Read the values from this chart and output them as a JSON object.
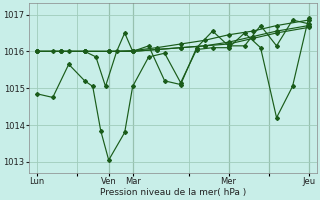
{
  "bg_color": "#c8eee8",
  "grid_color": "#a0ccbb",
  "line_color": "#1a5c1a",
  "ylabel": "Pression niveau de la mer( hPa )",
  "ylim": [
    1012.7,
    1017.3
  ],
  "yticks": [
    1013,
    1014,
    1015,
    1016,
    1017
  ],
  "xlim": [
    0,
    18
  ],
  "xtick_labels": [
    "Lun",
    "",
    "Ven",
    "Mar",
    "",
    "Mer",
    "",
    "Jeu"
  ],
  "xtick_positions": [
    0.5,
    3,
    5.0,
    6.5,
    10,
    12.5,
    15,
    17.5
  ],
  "lines": [
    {
      "x": [
        0.5,
        2.0,
        3.5,
        5.0,
        6.5,
        8.0,
        9.5,
        11.0,
        12.5,
        14.0,
        15.5,
        17.5
      ],
      "y": [
        1016.0,
        1016.0,
        1016.0,
        1016.0,
        1016.0,
        1016.05,
        1016.1,
        1016.15,
        1016.2,
        1016.35,
        1016.5,
        1016.65
      ],
      "marker": "D",
      "ms": 2.0
    },
    {
      "x": [
        0.5,
        2.0,
        3.5,
        5.0,
        6.5,
        8.0,
        9.5,
        11.0,
        12.5,
        14.0,
        15.5,
        17.5
      ],
      "y": [
        1016.0,
        1016.0,
        1016.0,
        1016.0,
        1016.0,
        1016.05,
        1016.1,
        1016.15,
        1016.25,
        1016.4,
        1016.55,
        1016.7
      ],
      "marker": "D",
      "ms": 2.0
    },
    {
      "x": [
        0.5,
        2.0,
        3.5,
        5.0,
        6.5,
        8.0,
        9.5,
        11.0,
        12.5,
        14.0,
        15.5,
        17.5
      ],
      "y": [
        1016.0,
        1016.0,
        1016.0,
        1016.0,
        1016.02,
        1016.1,
        1016.2,
        1016.3,
        1016.45,
        1016.55,
        1016.7,
        1016.85
      ],
      "marker": "D",
      "ms": 2.0
    },
    {
      "x": [
        0.5,
        1.5,
        2.5,
        3.5,
        4.2,
        4.8,
        5.5,
        6.0,
        6.5,
        7.5,
        8.5,
        9.5,
        10.5,
        11.5,
        12.5,
        13.5,
        14.5,
        15.5,
        16.5,
        17.5
      ],
      "y": [
        1016.0,
        1016.0,
        1016.0,
        1016.0,
        1015.85,
        1015.05,
        1016.0,
        1016.5,
        1016.0,
        1016.15,
        1015.2,
        1015.1,
        1016.1,
        1016.55,
        1016.15,
        1016.15,
        1016.7,
        1016.15,
        1016.85,
        1016.75
      ],
      "marker": "D",
      "ms": 2.0
    },
    {
      "x": [
        0.5,
        1.5,
        2.5,
        3.5,
        4.0,
        4.5,
        5.0,
        6.0,
        6.5,
        7.5,
        8.5,
        9.5,
        10.5,
        11.5,
        12.5,
        13.5,
        14.5,
        15.5,
        16.5,
        17.5
      ],
      "y": [
        1014.85,
        1014.75,
        1015.65,
        1015.2,
        1015.05,
        1013.85,
        1013.05,
        1013.8,
        1015.05,
        1015.85,
        1015.95,
        1015.15,
        1016.05,
        1016.1,
        1016.1,
        1016.5,
        1016.1,
        1014.2,
        1015.05,
        1016.9
      ],
      "marker": "D",
      "ms": 2.0
    }
  ],
  "vline_positions": [
    5.0,
    6.5,
    12.5,
    15.0,
    17.5
  ],
  "vline_color": "#446644"
}
